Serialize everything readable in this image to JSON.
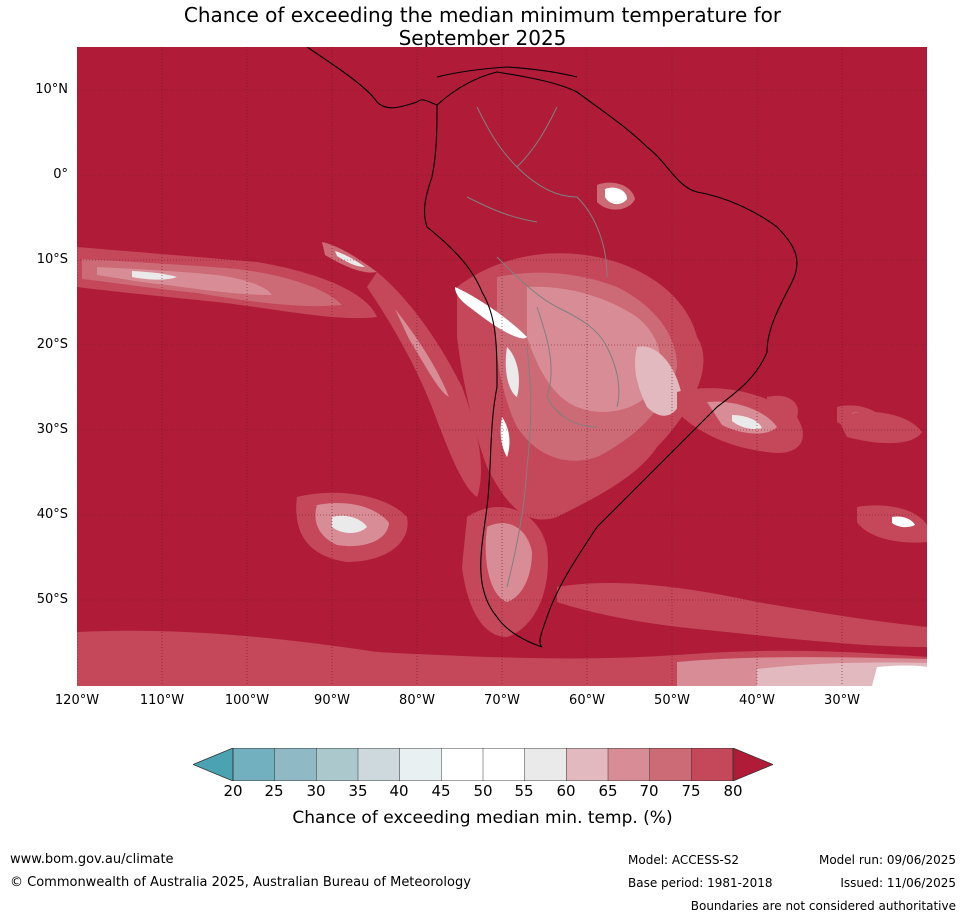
{
  "title": {
    "line1": "Chance of exceeding the median minimum temperature for",
    "line2": "September 2025"
  },
  "map": {
    "projection": "equirectangular",
    "lon_range": [
      -120,
      -20
    ],
    "lat_range": [
      -60,
      15
    ],
    "lat_labels": [
      "10°N",
      "0°",
      "10°S",
      "20°S",
      "30°S",
      "40°S",
      "50°S"
    ],
    "lon_labels": [
      "120°W",
      "110°W",
      "100°W",
      "90°W",
      "80°W",
      "70°W",
      "60°W",
      "50°W",
      "40°W",
      "30°W"
    ],
    "background_category": "80+",
    "colors": {
      "dark_red": "#b01c37",
      "red75": "#c4485a",
      "red70": "#cc6a76",
      "pink65": "#d88c95",
      "pink60": "#e2b9bf",
      "grey55": "#ebeaeb",
      "white": "#ffffff",
      "country_border": "#808080",
      "coastline": "#000000",
      "gridline": "#6d1426"
    }
  },
  "colorbar": {
    "ticks": [
      "20",
      "25",
      "30",
      "35",
      "40",
      "45",
      "50",
      "55",
      "60",
      "65",
      "70",
      "75",
      "80"
    ],
    "colors": [
      "#5fa9b8",
      "#72b0bf",
      "#8fbac5",
      "#abc8cd",
      "#cdd9dc",
      "#e9f0f2",
      "#ffffff",
      "#ffffff",
      "#ebeaeb",
      "#e2b9bf",
      "#d88c95",
      "#cc6a76",
      "#c4485a"
    ],
    "low_extend_color": "#4aa2b2",
    "high_extend_color": "#b01c37",
    "label": "Chance of exceeding median min. temp. (%)"
  },
  "footer": {
    "website": "www.bom.gov.au/climate",
    "copyright": "© Commonwealth of Australia 2025, Australian Bureau of Meteorology",
    "model": "Model: ACCESS-S2",
    "base_period": "Base period: 1981-2018",
    "model_run": "Model run: 09/06/2025",
    "issued": "Issued: 11/06/2025",
    "disclaimer": "Boundaries are not considered authoritative"
  }
}
